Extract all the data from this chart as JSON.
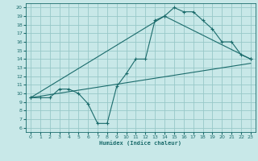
{
  "title": "",
  "xlabel": "Humidex (Indice chaleur)",
  "bg_color": "#c8e8e8",
  "grid_color": "#98c8c8",
  "line_color": "#1a6b6b",
  "xlim": [
    -0.5,
    23.5
  ],
  "ylim": [
    5.5,
    20.5
  ],
  "xticks": [
    0,
    1,
    2,
    3,
    4,
    5,
    6,
    7,
    8,
    9,
    10,
    11,
    12,
    13,
    14,
    15,
    16,
    17,
    18,
    19,
    20,
    21,
    22,
    23
  ],
  "yticks": [
    6,
    7,
    8,
    9,
    10,
    11,
    12,
    13,
    14,
    15,
    16,
    17,
    18,
    19,
    20
  ],
  "line1_x": [
    0,
    1,
    2,
    3,
    4,
    5,
    6,
    7,
    8,
    9,
    10,
    11,
    12,
    13,
    14,
    15,
    16,
    17,
    18,
    19,
    20,
    21,
    22,
    23
  ],
  "line1_y": [
    9.5,
    9.5,
    9.5,
    10.5,
    10.5,
    10.0,
    8.8,
    6.5,
    6.5,
    10.8,
    12.3,
    14.0,
    14.0,
    18.5,
    19.0,
    20.0,
    19.5,
    19.5,
    18.5,
    17.5,
    16.0,
    16.0,
    14.5,
    14.0
  ],
  "line2_x": [
    0,
    14,
    23
  ],
  "line2_y": [
    9.5,
    19.0,
    14.0
  ],
  "line3_x": [
    0,
    23
  ],
  "line3_y": [
    9.5,
    13.5
  ],
  "figsize": [
    3.2,
    2.0
  ],
  "dpi": 100
}
